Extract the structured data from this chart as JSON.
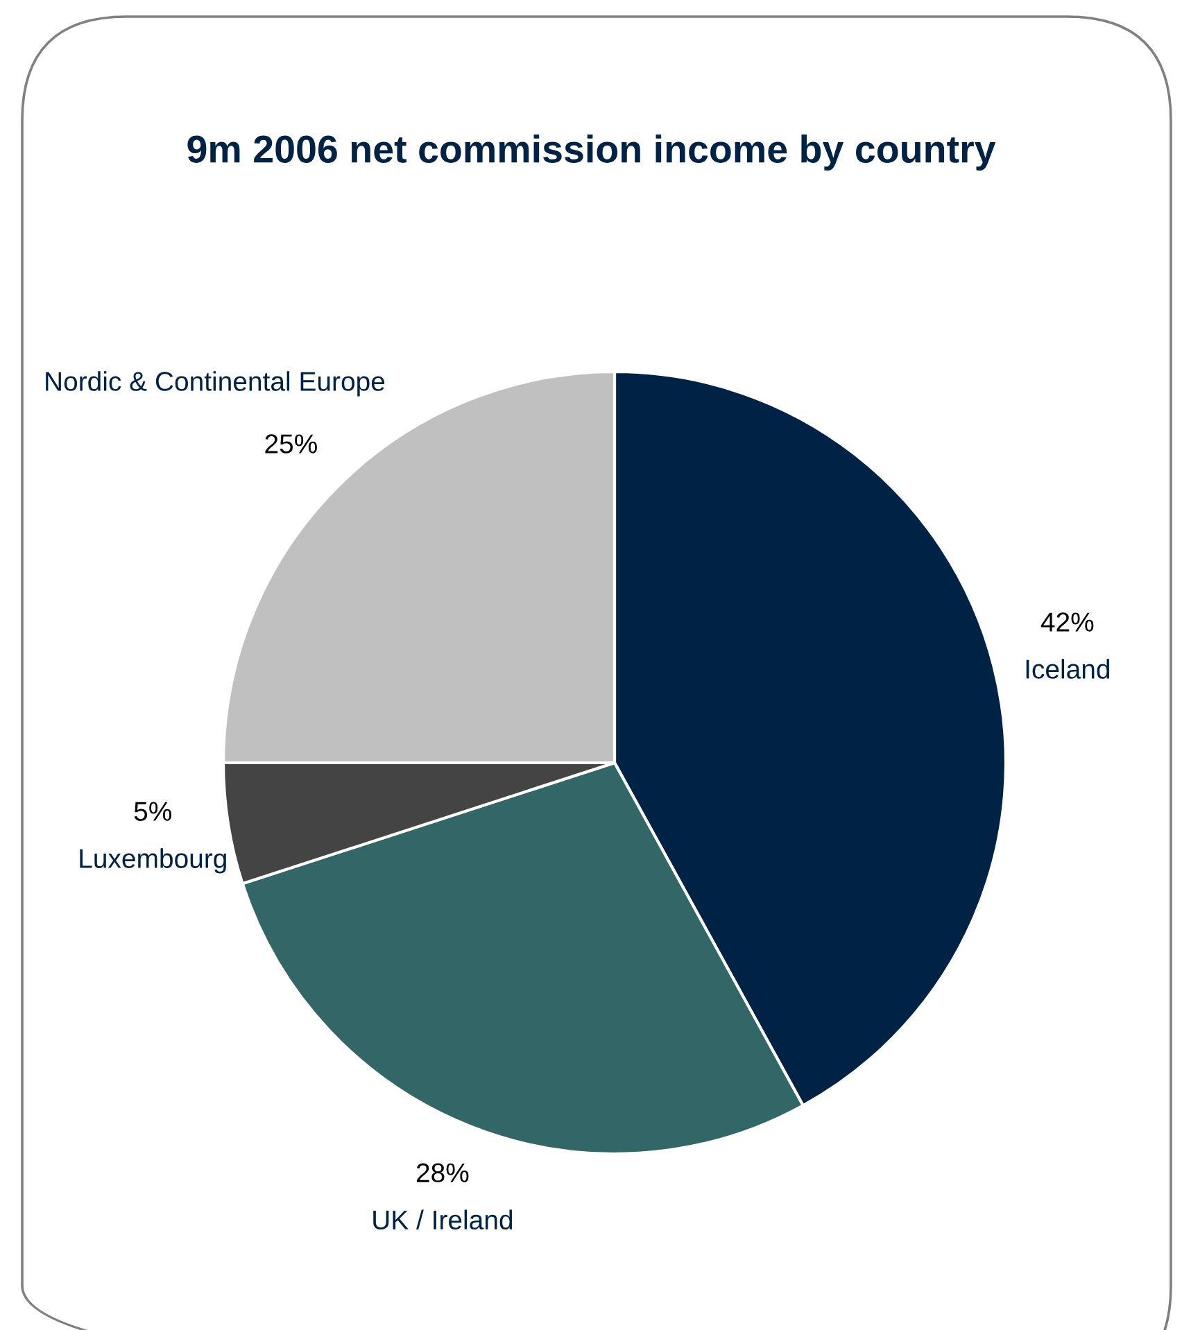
{
  "chart_data": {
    "type": "pie",
    "title": "9m 2006 net commission income by country",
    "categories": [
      "Iceland",
      "UK / Ireland",
      "Luxembourg",
      "Nordic & Continental Europe"
    ],
    "values": [
      42,
      28,
      5,
      25
    ],
    "value_labels": [
      "42%",
      "28%",
      "5%",
      "25%"
    ],
    "colors": [
      "#002244",
      "#336666",
      "#444444",
      "#c0c0c0"
    ]
  }
}
